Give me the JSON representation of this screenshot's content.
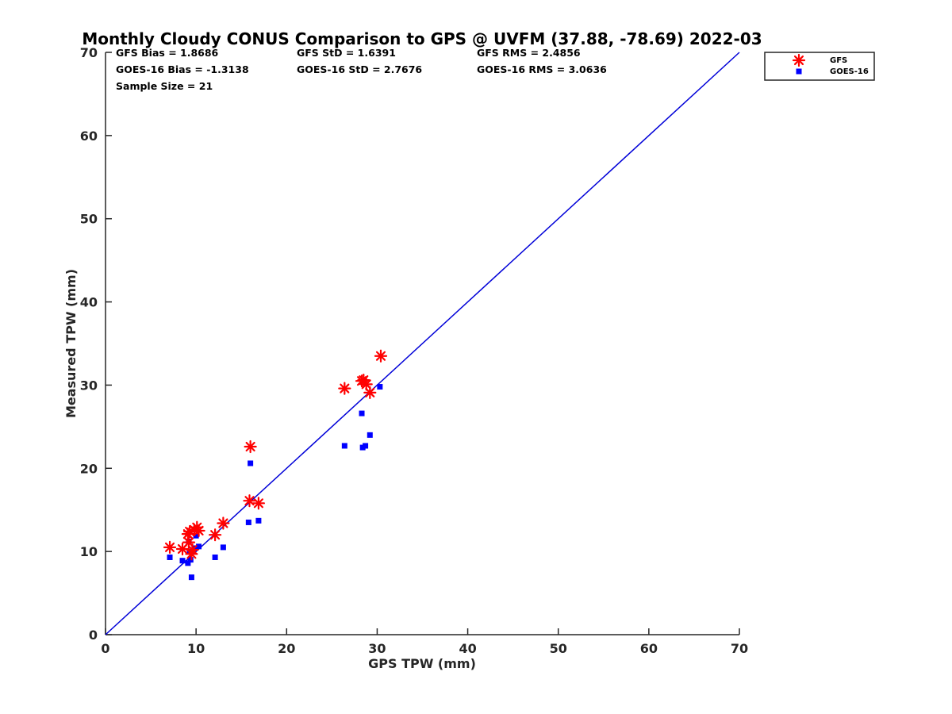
{
  "chart_data": {
    "type": "scatter",
    "title": "Monthly Cloudy CONUS Comparison to GPS @ UVFM (37.88, -78.69) 2022-03",
    "xlabel": "GPS TPW (mm)",
    "ylabel": "Measured TPW (mm)",
    "xlim": [
      0,
      70
    ],
    "ylim": [
      0,
      70
    ],
    "xticks": [
      0,
      10,
      20,
      30,
      40,
      50,
      60,
      70
    ],
    "yticks": [
      0,
      10,
      20,
      30,
      40,
      50,
      60,
      70
    ],
    "grid": false,
    "legend_position": "outside-top-right",
    "reference_line": {
      "x": [
        0,
        70
      ],
      "y": [
        0,
        70
      ],
      "color": "#0000d8"
    },
    "stats": {
      "gfs_bias": "GFS Bias = 1.8686",
      "gfs_std": "GFS StD = 1.6391",
      "gfs_rms": "GFS RMS = 2.4856",
      "goes_bias": "GOES-16 Bias = -1.3138",
      "goes_std": "GOES-16 StD = 2.7676",
      "goes_rms": "GOES-16 RMS = 3.0636",
      "sample_size": "Sample Size = 21"
    },
    "series": [
      {
        "name": "GFS",
        "marker": "asterisk",
        "color": "#ff0000",
        "points": [
          [
            7.1,
            10.5
          ],
          [
            8.5,
            10.3
          ],
          [
            9.1,
            12.1
          ],
          [
            9.3,
            12.4
          ],
          [
            9.5,
            9.7
          ],
          [
            9.8,
            12.6
          ],
          [
            10.1,
            12.9
          ],
          [
            10.3,
            12.5
          ],
          [
            12.1,
            12.0
          ],
          [
            13.0,
            13.4
          ],
          [
            15.9,
            16.1
          ],
          [
            16.0,
            22.6
          ],
          [
            16.9,
            15.8
          ],
          [
            26.4,
            29.6
          ],
          [
            28.3,
            30.5
          ],
          [
            28.5,
            30.6
          ],
          [
            28.8,
            30.1
          ],
          [
            29.2,
            29.1
          ],
          [
            30.4,
            33.5
          ],
          [
            9.6,
            10.2
          ],
          [
            9.2,
            11.1
          ]
        ]
      },
      {
        "name": "GOES-16",
        "marker": "square",
        "color": "#0000ff",
        "points": [
          [
            7.1,
            9.3
          ],
          [
            8.5,
            8.9
          ],
          [
            9.1,
            8.6
          ],
          [
            9.2,
            11.2
          ],
          [
            9.4,
            9.0
          ],
          [
            9.5,
            6.9
          ],
          [
            9.8,
            10.4
          ],
          [
            10.0,
            11.9
          ],
          [
            10.3,
            10.6
          ],
          [
            12.1,
            9.3
          ],
          [
            13.0,
            10.5
          ],
          [
            15.8,
            13.5
          ],
          [
            16.0,
            20.6
          ],
          [
            16.9,
            13.7
          ],
          [
            26.4,
            22.7
          ],
          [
            28.3,
            26.6
          ],
          [
            28.4,
            22.5
          ],
          [
            28.7,
            22.7
          ],
          [
            29.2,
            24.0
          ],
          [
            30.3,
            29.8
          ],
          [
            9.3,
            10.0
          ]
        ]
      }
    ]
  }
}
